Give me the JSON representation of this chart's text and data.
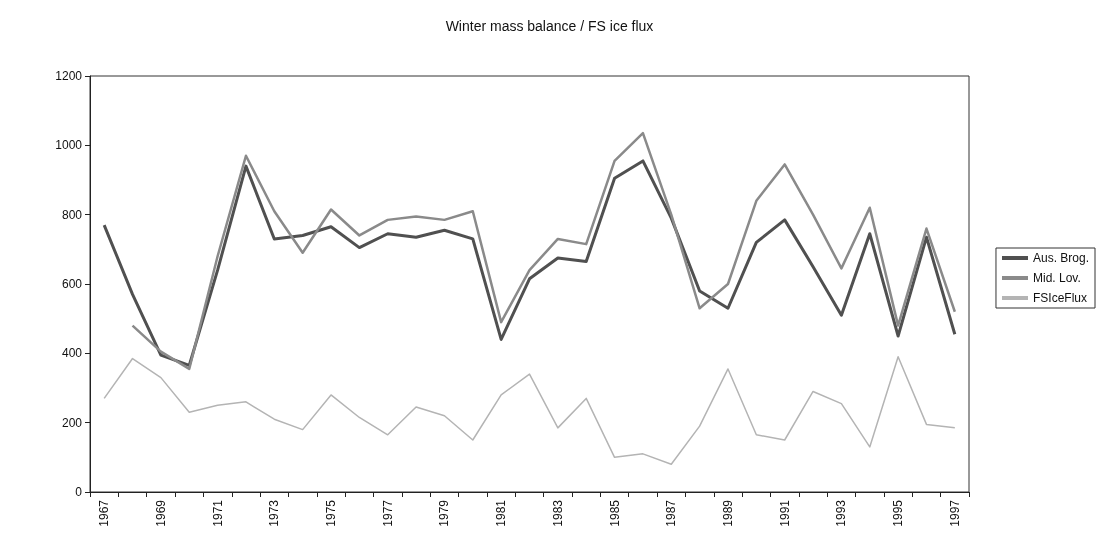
{
  "chart_data": {
    "type": "line",
    "title": "Winter mass balance / FS ice flux",
    "categories": [
      "1967",
      null,
      "1969",
      null,
      "1971",
      null,
      "1973",
      null,
      "1975",
      null,
      "1977",
      null,
      "1979",
      null,
      "1981",
      null,
      "1983",
      null,
      "1985",
      null,
      "1987",
      null,
      "1989",
      null,
      "1991",
      null,
      "1993",
      null,
      "1995",
      null,
      "1997"
    ],
    "series": [
      {
        "name": "Aus. Brog.",
        "color": "#505050",
        "values": [
          770,
          570,
          395,
          365,
          640,
          940,
          730,
          740,
          765,
          705,
          745,
          735,
          755,
          730,
          440,
          615,
          675,
          665,
          905,
          955,
          790,
          580,
          530,
          720,
          785,
          650,
          510,
          745,
          450,
          735,
          455
        ]
      },
      {
        "name": "Mid. Lov.",
        "color": "#8a8a8a",
        "values": [
          null,
          480,
          405,
          355,
          680,
          970,
          810,
          690,
          815,
          740,
          785,
          795,
          785,
          810,
          490,
          640,
          730,
          715,
          955,
          1035,
          800,
          530,
          600,
          840,
          945,
          800,
          645,
          820,
          480,
          760,
          520
        ]
      },
      {
        "name": "FSIceFlux",
        "color": "#b4b4b4",
        "values": [
          270,
          385,
          330,
          230,
          250,
          260,
          210,
          180,
          280,
          215,
          165,
          245,
          220,
          150,
          280,
          340,
          185,
          270,
          100,
          110,
          80,
          190,
          355,
          165,
          150,
          290,
          255,
          130,
          390,
          195,
          185
        ]
      }
    ],
    "ylim": [
      0,
      1200
    ],
    "yticks": [
      0,
      200,
      400,
      600,
      800,
      1000,
      1200
    ],
    "grid": false,
    "legend": "right",
    "marker": "none",
    "line_style": "solid"
  }
}
